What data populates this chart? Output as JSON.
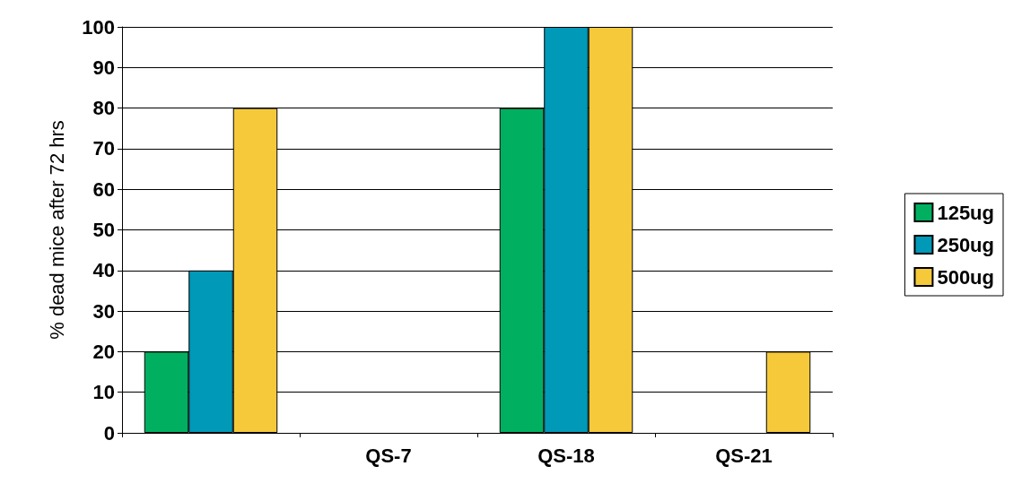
{
  "chart_data": {
    "type": "bar",
    "ylabel": "% dead mice after 72 hrs",
    "categories": [
      null,
      "QS-7",
      "QS-18",
      "QS-21"
    ],
    "series": [
      {
        "name": "125ug",
        "color": "#00b060",
        "values": [
          20,
          0,
          80,
          0
        ]
      },
      {
        "name": "250ug",
        "color": "#0099b8",
        "values": [
          40,
          0,
          100,
          0
        ]
      },
      {
        "name": "500ug",
        "color": "#f5c93a",
        "values": [
          80,
          0,
          100,
          20
        ]
      }
    ],
    "ylim": [
      0,
      100
    ],
    "yticks": [
      0,
      10,
      20,
      30,
      40,
      50,
      60,
      70,
      80,
      90,
      100
    ],
    "grid": "y",
    "legend": "right"
  }
}
